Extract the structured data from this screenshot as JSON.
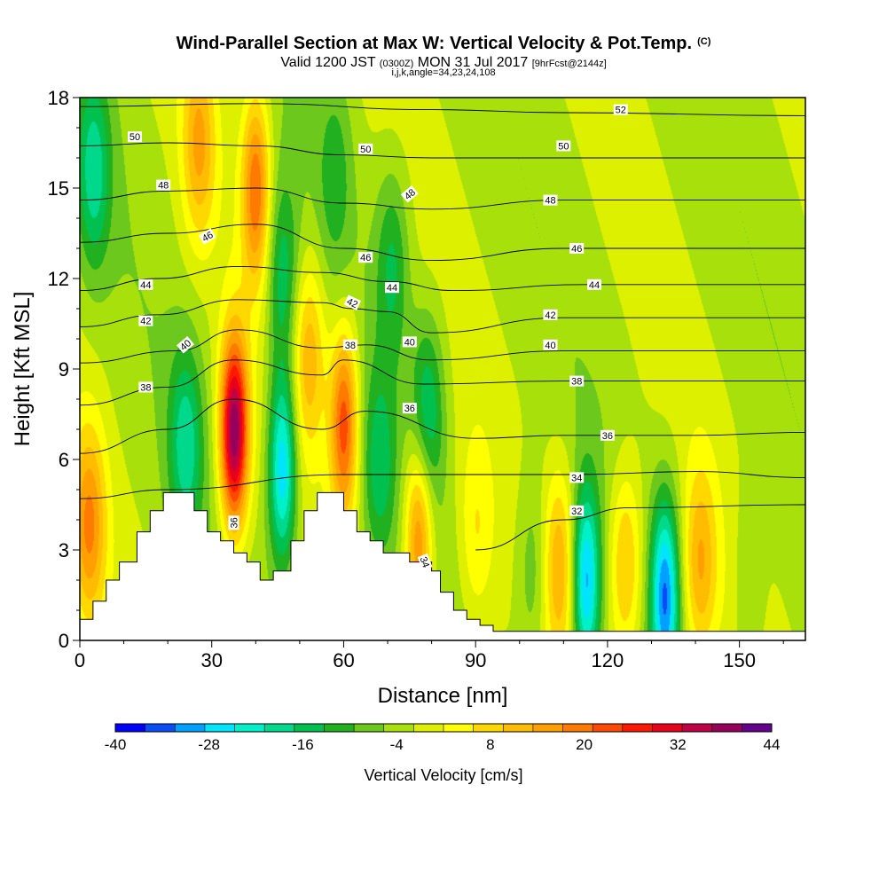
{
  "header": {
    "title": "Wind-Parallel Section at Max W: Vertical Velocity & Pot.Temp.",
    "copyright": "(C)",
    "valid_prefix": "Valid 1200 JST",
    "valid_utc": "(0300Z)",
    "valid_date": "MON 31 Jul 2017",
    "forecast": "[9hrFcst@2144z]",
    "ijk": "i,j,k,angle=34,23,24,108"
  },
  "chart_data": {
    "type": "heatmap",
    "xlabel": "Distance [nm]",
    "ylabel": "Height [Kft MSL]",
    "xlim": [
      0,
      165
    ],
    "ylim": [
      0,
      18
    ],
    "x_ticks": [
      0,
      30,
      60,
      90,
      120,
      150
    ],
    "y_ticks": [
      0,
      3,
      6,
      9,
      12,
      15,
      18
    ],
    "colorbar": {
      "label": "Vertical Velocity [cm/s]",
      "tick_labels": [
        "-40",
        "-28",
        "-16",
        "-4",
        "8",
        "20",
        "32",
        "44"
      ],
      "levels": [
        -40,
        -36,
        -32,
        -28,
        -24,
        -20,
        -16,
        -12,
        -8,
        -4,
        0,
        4,
        8,
        12,
        16,
        20,
        24,
        28,
        32,
        36,
        40,
        44
      ],
      "colors": [
        "#0000ff",
        "#0a4df5",
        "#00a0ff",
        "#00e4ff",
        "#00f0c8",
        "#00d88c",
        "#00c050",
        "#20b020",
        "#6cc81c",
        "#a8e00c",
        "#ddf000",
        "#ffff00",
        "#ffd800",
        "#ffbc00",
        "#ffa000",
        "#ff7a00",
        "#ff4800",
        "#ff1800",
        "#e6001c",
        "#c00046",
        "#96005a",
        "#64008c"
      ]
    },
    "terrain": [
      [
        0,
        0.7
      ],
      [
        3,
        0.7
      ],
      [
        3,
        1.3
      ],
      [
        6,
        1.3
      ],
      [
        6,
        2.0
      ],
      [
        9,
        2.0
      ],
      [
        9,
        2.6
      ],
      [
        13,
        2.6
      ],
      [
        13,
        3.6
      ],
      [
        16,
        3.6
      ],
      [
        16,
        4.3
      ],
      [
        19,
        4.3
      ],
      [
        19,
        4.9
      ],
      [
        26,
        4.9
      ],
      [
        26,
        4.3
      ],
      [
        29,
        4.3
      ],
      [
        29,
        3.6
      ],
      [
        32,
        3.6
      ],
      [
        32,
        3.3
      ],
      [
        35,
        3.3
      ],
      [
        35,
        2.9
      ],
      [
        38,
        2.9
      ],
      [
        38,
        2.6
      ],
      [
        41,
        2.6
      ],
      [
        41,
        2.0
      ],
      [
        44,
        2.0
      ],
      [
        44,
        2.3
      ],
      [
        48,
        2.3
      ],
      [
        48,
        3.3
      ],
      [
        51,
        3.3
      ],
      [
        51,
        4.3
      ],
      [
        54,
        4.3
      ],
      [
        54,
        4.9
      ],
      [
        60,
        4.9
      ],
      [
        60,
        4.3
      ],
      [
        63,
        4.3
      ],
      [
        63,
        3.6
      ],
      [
        66,
        3.6
      ],
      [
        66,
        3.3
      ],
      [
        69,
        3.3
      ],
      [
        69,
        2.9
      ],
      [
        75,
        2.9
      ],
      [
        75,
        2.6
      ],
      [
        80,
        2.6
      ],
      [
        80,
        2.3
      ],
      [
        82,
        2.3
      ],
      [
        82,
        1.6
      ],
      [
        85,
        1.6
      ],
      [
        85,
        1.0
      ],
      [
        88,
        1.0
      ],
      [
        88,
        0.7
      ],
      [
        91,
        0.7
      ],
      [
        91,
        0.5
      ],
      [
        94,
        0.5
      ],
      [
        94,
        0.3
      ],
      [
        165,
        0.3
      ],
      [
        165,
        0
      ]
    ],
    "updraft_centers": [
      {
        "x": 35,
        "y": 6.9,
        "value": 44
      },
      {
        "x": 60,
        "y": 7.2,
        "value": 28
      },
      {
        "x": 40,
        "y": 15,
        "value": 24
      },
      {
        "x": 77,
        "y": 3.5,
        "value": 24
      },
      {
        "x": 2,
        "y": 3.8,
        "value": 20
      },
      {
        "x": 27,
        "y": 16.5,
        "value": 16
      },
      {
        "x": 52,
        "y": 9.5,
        "value": 16
      },
      {
        "x": 109,
        "y": 2.5,
        "value": 16
      },
      {
        "x": 124,
        "y": 2.5,
        "value": 16
      },
      {
        "x": 141,
        "y": 2.5,
        "value": 16
      },
      {
        "x": 90,
        "y": 3.5,
        "value": 8
      },
      {
        "x": 150,
        "y": 1.5,
        "value": 8
      }
    ],
    "downdraft_centers": [
      {
        "x": 46,
        "y": 5.7,
        "value": -28
      },
      {
        "x": 24,
        "y": 6.5,
        "value": -16
      },
      {
        "x": 68,
        "y": 5.8,
        "value": -12
      },
      {
        "x": 46,
        "y": 12,
        "value": -14
      },
      {
        "x": 71,
        "y": 12.5,
        "value": -12
      },
      {
        "x": 79,
        "y": 7.5,
        "value": -16
      },
      {
        "x": 115,
        "y": 1.9,
        "value": -28
      },
      {
        "x": 133,
        "y": 1.5,
        "value": -30
      },
      {
        "x": 103,
        "y": 2.3,
        "value": -8
      },
      {
        "x": 151,
        "y": 1.6,
        "value": -12
      },
      {
        "x": 3,
        "y": 15.5,
        "value": -16
      },
      {
        "x": 58,
        "y": 15.5,
        "value": -8
      }
    ],
    "theta_contours": [
      {
        "label": "32",
        "pts": [
          [
            90,
            3
          ],
          [
            110,
            4
          ],
          [
            125,
            4.4
          ],
          [
            165,
            4.5
          ]
        ]
      },
      {
        "label": "34",
        "pts": [
          [
            0,
            4.7
          ],
          [
            20,
            5.0
          ],
          [
            60,
            5.5
          ],
          [
            90,
            5.5
          ],
          [
            112,
            5.5
          ],
          [
            140,
            5.6
          ],
          [
            165,
            5.4
          ]
        ]
      },
      {
        "label": "36",
        "pts": [
          [
            0,
            6.2
          ],
          [
            20,
            7.0
          ],
          [
            35,
            8.0
          ],
          [
            55,
            7.0
          ],
          [
            65,
            7.6
          ],
          [
            90,
            6.7
          ],
          [
            110,
            6.8
          ],
          [
            140,
            6.8
          ],
          [
            165,
            6.9
          ]
        ]
      },
      {
        "label": "38",
        "pts": [
          [
            0,
            7.8
          ],
          [
            20,
            8.4
          ],
          [
            35,
            9.3
          ],
          [
            55,
            8.8
          ],
          [
            60,
            9.3
          ],
          [
            78,
            8.5
          ],
          [
            110,
            8.6
          ],
          [
            165,
            8.6
          ]
        ]
      },
      {
        "label": "40",
        "pts": [
          [
            0,
            9.2
          ],
          [
            22,
            9.6
          ],
          [
            36,
            10.3
          ],
          [
            55,
            9.7
          ],
          [
            65,
            9.8
          ],
          [
            80,
            9.3
          ],
          [
            110,
            9.6
          ],
          [
            165,
            9.6
          ]
        ]
      },
      {
        "label": "42",
        "pts": [
          [
            0,
            10.4
          ],
          [
            18,
            10.8
          ],
          [
            36,
            11.3
          ],
          [
            55,
            11.2
          ],
          [
            62,
            11.0
          ],
          [
            70,
            10.9
          ],
          [
            80,
            10.2
          ],
          [
            110,
            10.7
          ],
          [
            165,
            10.7
          ]
        ]
      },
      {
        "label": "44",
        "pts": [
          [
            0,
            11.6
          ],
          [
            18,
            12.0
          ],
          [
            36,
            12.4
          ],
          [
            55,
            12.2
          ],
          [
            70,
            11.9
          ],
          [
            85,
            11.6
          ],
          [
            115,
            11.8
          ],
          [
            165,
            11.8
          ]
        ]
      },
      {
        "label": "46",
        "pts": [
          [
            0,
            13.2
          ],
          [
            20,
            13.5
          ],
          [
            40,
            13.8
          ],
          [
            60,
            13.0
          ],
          [
            80,
            12.6
          ],
          [
            110,
            13.0
          ],
          [
            165,
            13.0
          ]
        ]
      },
      {
        "label": "48",
        "pts": [
          [
            0,
            14.6
          ],
          [
            20,
            14.9
          ],
          [
            40,
            15.0
          ],
          [
            60,
            14.5
          ],
          [
            80,
            14.3
          ],
          [
            110,
            14.6
          ],
          [
            165,
            14.6
          ]
        ]
      },
      {
        "label": "50",
        "pts": [
          [
            0,
            16.4
          ],
          [
            20,
            16.5
          ],
          [
            40,
            16.4
          ],
          [
            60,
            16.1
          ],
          [
            80,
            16.0
          ],
          [
            110,
            16.0
          ],
          [
            165,
            16.0
          ]
        ]
      },
      {
        "label": "52",
        "pts": [
          [
            0,
            17.7
          ],
          [
            40,
            17.8
          ],
          [
            80,
            17.6
          ],
          [
            110,
            17.5
          ],
          [
            165,
            17.4
          ]
        ]
      }
    ],
    "contour_labels": [
      {
        "text": "50",
        "x": 12.5,
        "y": 16.7
      },
      {
        "text": "50",
        "x": 65,
        "y": 16.3
      },
      {
        "text": "50",
        "x": 110,
        "y": 16.4
      },
      {
        "text": "52",
        "x": 123,
        "y": 17.6
      },
      {
        "text": "48",
        "x": 19,
        "y": 15.1
      },
      {
        "text": "48",
        "x": 75,
        "y": 14.8,
        "rotate": -40
      },
      {
        "text": "48",
        "x": 107,
        "y": 14.6
      },
      {
        "text": "46",
        "x": 29,
        "y": 13.4,
        "rotate": -30
      },
      {
        "text": "46",
        "x": 65,
        "y": 12.7
      },
      {
        "text": "46",
        "x": 113,
        "y": 13.0
      },
      {
        "text": "44",
        "x": 15,
        "y": 11.8
      },
      {
        "text": "44",
        "x": 71,
        "y": 11.7
      },
      {
        "text": "44",
        "x": 117,
        "y": 11.8
      },
      {
        "text": "42",
        "x": 15,
        "y": 10.6
      },
      {
        "text": "42",
        "x": 62,
        "y": 11.2,
        "rotate": 25
      },
      {
        "text": "42",
        "x": 107,
        "y": 10.8
      },
      {
        "text": "40",
        "x": 24,
        "y": 9.8,
        "rotate": -40
      },
      {
        "text": "40",
        "x": 75,
        "y": 9.9
      },
      {
        "text": "40",
        "x": 107,
        "y": 9.8
      },
      {
        "text": "38",
        "x": 15,
        "y": 8.4
      },
      {
        "text": "38",
        "x": 61.5,
        "y": 9.8
      },
      {
        "text": "38",
        "x": 113,
        "y": 8.6
      },
      {
        "text": "36",
        "x": 75,
        "y": 7.7
      },
      {
        "text": "36",
        "x": 120,
        "y": 6.8
      },
      {
        "text": "36",
        "x": 35,
        "y": 3.9,
        "rotate": -90
      },
      {
        "text": "34",
        "x": 113,
        "y": 5.4
      },
      {
        "text": "34",
        "x": 78.5,
        "y": 2.6,
        "rotate": 70
      },
      {
        "text": "32",
        "x": 113,
        "y": 4.3
      }
    ]
  }
}
